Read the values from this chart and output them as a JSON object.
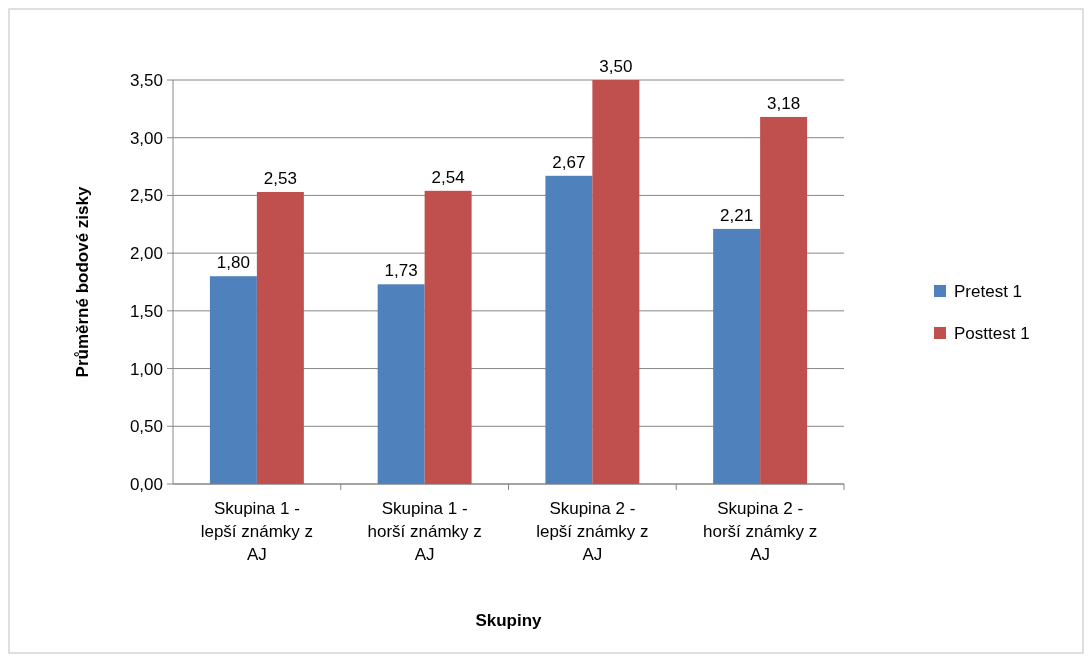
{
  "chart_data": {
    "type": "bar",
    "xlabel": "Skupiny",
    "ylabel": "Průměrné bodové zisky",
    "categories": [
      "Skupina 1 - lepší známky z AJ",
      "Skupina 1 - horší známky z AJ",
      "Skupina 2 - lepší známky z AJ",
      "Skupina 2 - horší známky z AJ"
    ],
    "series": [
      {
        "name": "Pretest 1",
        "color": "#4f81bd",
        "values": [
          1.8,
          1.73,
          2.67,
          2.21
        ],
        "value_labels": [
          "1,80",
          "1,73",
          "2,67",
          "2,21"
        ]
      },
      {
        "name": "Posttest 1",
        "color": "#c0504d",
        "values": [
          2.53,
          2.54,
          3.5,
          3.18
        ],
        "value_labels": [
          "2,53",
          "2,54",
          "3,50",
          "3,18"
        ]
      }
    ],
    "ylim": [
      0,
      3.5
    ],
    "yticks": [
      {
        "value": 0,
        "label": "0,00"
      },
      {
        "value": 0.5,
        "label": "0,50"
      },
      {
        "value": 1,
        "label": "1,00"
      },
      {
        "value": 1.5,
        "label": "1,50"
      },
      {
        "value": 2,
        "label": "2,00"
      },
      {
        "value": 2.5,
        "label": "2,50"
      },
      {
        "value": 3,
        "label": "3,00"
      },
      {
        "value": 3.5,
        "label": "3,50"
      }
    ],
    "grid": "y",
    "legend": "right"
  }
}
